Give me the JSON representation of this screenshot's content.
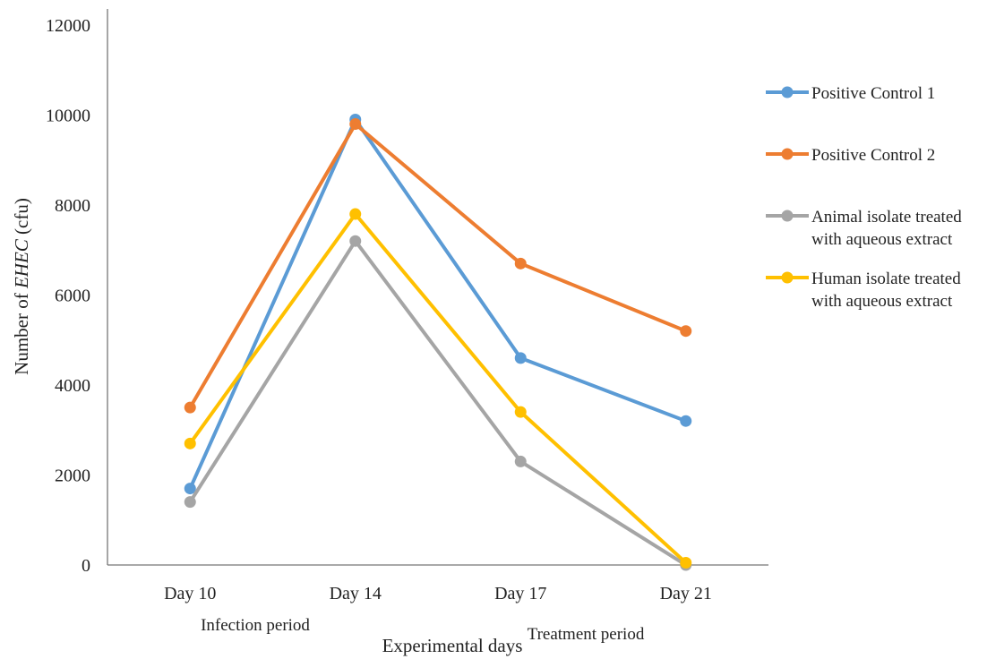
{
  "chart_data": {
    "type": "line",
    "title": "",
    "xlabel": "Experimental days",
    "ylabel": {
      "prefix": "Number of ",
      "italic": "EHEC",
      "suffix": " (cfu)"
    },
    "categories": [
      "Day 10",
      "Day 14",
      "Day 17",
      "Day 21"
    ],
    "ylim": [
      0,
      12000
    ],
    "yticks": [
      0,
      2000,
      4000,
      6000,
      8000,
      10000,
      12000
    ],
    "yticklabels": [
      "0",
      "2000",
      "4000",
      "6000",
      "8000",
      "10000",
      "12000"
    ],
    "grid": false,
    "legend_position": "right",
    "series": [
      {
        "name_lines": [
          "Positive Control 1"
        ],
        "color": "#5B9BD5",
        "values": [
          1700,
          9900,
          4600,
          3200
        ]
      },
      {
        "name_lines": [
          "Positive Control 2"
        ],
        "color": "#ED7D31",
        "values": [
          3500,
          9800,
          6700,
          5200
        ]
      },
      {
        "name_lines": [
          "Animal isolate treated",
          "with aqueous extract"
        ],
        "color": "#A5A5A5",
        "values": [
          1400,
          7200,
          2300,
          0
        ]
      },
      {
        "name_lines": [
          "Human isolate treated",
          "with aqueous extract"
        ],
        "color": "#FFC000",
        "values": [
          2700,
          7800,
          3400,
          50
        ]
      }
    ],
    "annotations": [
      "Infection period",
      "Treatment period"
    ]
  }
}
